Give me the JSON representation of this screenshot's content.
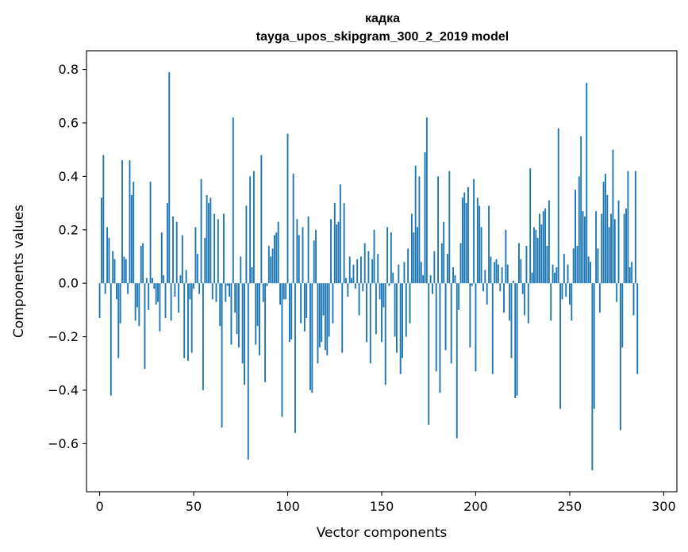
{
  "chart_data": {
    "type": "bar",
    "title": "кадка",
    "subtitle": "tayga_upos_skipgram_300_2_2019 model",
    "xlabel": "Vector components",
    "ylabel": "Components values",
    "xlim": [
      -7,
      307
    ],
    "ylim": [
      -0.78,
      0.87
    ],
    "xticks": [
      0,
      50,
      100,
      150,
      200,
      250,
      300
    ],
    "xtick_labels": [
      "0",
      "50",
      "100",
      "150",
      "200",
      "250",
      "300"
    ],
    "yticks": [
      -0.6,
      -0.4,
      -0.2,
      0.0,
      0.2,
      0.4,
      0.6,
      0.8
    ],
    "ytick_labels": [
      "−0.6",
      "−0.4",
      "−0.2",
      "0.0",
      "0.2",
      "0.4",
      "0.6",
      "0.8"
    ],
    "grid": false,
    "bar_color": "#1f77b4",
    "values": [
      -0.13,
      0.32,
      0.48,
      -0.04,
      0.21,
      0.17,
      -0.42,
      0.12,
      0.09,
      -0.06,
      -0.28,
      -0.15,
      0.46,
      0.1,
      0.09,
      -0.04,
      0.46,
      0.33,
      0.38,
      -0.14,
      -0.09,
      -0.16,
      0.14,
      0.15,
      -0.32,
      0.02,
      -0.1,
      0.38,
      0.02,
      -0.02,
      -0.08,
      -0.07,
      -0.18,
      0.19,
      0.03,
      -0.13,
      0.3,
      0.79,
      -0.14,
      0.25,
      -0.05,
      0.23,
      -0.11,
      0.03,
      0.18,
      -0.28,
      0.05,
      -0.29,
      -0.06,
      -0.26,
      -0.02,
      0.21,
      0.11,
      -0.04,
      0.39,
      -0.4,
      0.17,
      0.33,
      0.3,
      0.32,
      -0.06,
      0.26,
      -0.07,
      0.24,
      -0.16,
      -0.54,
      0.26,
      -0.07,
      -0.01,
      -0.05,
      -0.23,
      0.62,
      -0.11,
      -0.19,
      -0.24,
      0.1,
      -0.3,
      -0.38,
      0.29,
      -0.66,
      0.4,
      0.06,
      0.42,
      -0.23,
      -0.16,
      -0.27,
      0.48,
      -0.07,
      -0.37,
      -0.01,
      0.14,
      0.1,
      0.13,
      0.18,
      0.19,
      0.23,
      -0.08,
      -0.5,
      -0.06,
      -0.06,
      0.56,
      -0.22,
      -0.21,
      0.41,
      -0.56,
      0.24,
      0.18,
      -0.15,
      0.21,
      -0.18,
      -0.13,
      0.25,
      -0.4,
      -0.41,
      0.16,
      0.2,
      -0.3,
      -0.24,
      -0.22,
      -0.12,
      -0.25,
      -0.27,
      -0.2,
      0.24,
      -0.15,
      0.3,
      0.22,
      0.23,
      0.37,
      -0.26,
      0.3,
      0.02,
      -0.05,
      0.1,
      0.02,
      0.07,
      -0.02,
      0.09,
      -0.12,
      0.1,
      -0.03,
      0.15,
      -0.22,
      0.12,
      -0.3,
      0.09,
      0.2,
      -0.19,
      0.11,
      -0.06,
      -0.22,
      -0.09,
      -0.38,
      0.21,
      -0.01,
      0.19,
      0.04,
      -0.2,
      -0.26,
      0.07,
      -0.34,
      -0.28,
      0.08,
      -0.2,
      0.13,
      -0.15,
      0.26,
      0.19,
      0.44,
      0.21,
      0.4,
      0.08,
      0.03,
      0.49,
      0.62,
      -0.53,
      0.03,
      -0.04,
      0.12,
      -0.33,
      0.4,
      -0.41,
      0.15,
      0.23,
      -0.25,
      0.11,
      0.42,
      -0.3,
      0.06,
      0.03,
      -0.58,
      -0.1,
      0.15,
      0.32,
      0.34,
      0.3,
      0.36,
      -0.24,
      -0.01,
      0.39,
      -0.33,
      0.32,
      0.29,
      0.21,
      -0.03,
      0.05,
      -0.08,
      0.29,
      0.1,
      -0.34,
      0.08,
      0.09,
      0.07,
      -0.03,
      0.06,
      -0.11,
      0.2,
      0.07,
      -0.14,
      -0.28,
      0.01,
      -0.43,
      -0.42,
      0.15,
      0.09,
      -0.04,
      -0.12,
      0.14,
      -0.15,
      0.43,
      0.04,
      0.21,
      0.2,
      0.17,
      0.26,
      0.22,
      0.27,
      0.28,
      0.14,
      0.31,
      -0.14,
      0.07,
      0.04,
      0.06,
      0.58,
      -0.47,
      -0.06,
      0.11,
      -0.05,
      0.07,
      -0.08,
      -0.14,
      0.13,
      0.35,
      0.14,
      0.4,
      0.55,
      0.27,
      0.25,
      0.75,
      0.1,
      0.08,
      -0.7,
      -0.47,
      0.27,
      0.13,
      -0.11,
      0.26,
      0.38,
      0.41,
      0.33,
      0.21,
      0.26,
      0.5,
      0.24,
      -0.07,
      0.31,
      -0.55,
      -0.24,
      0.26,
      0.28,
      0.42,
      0.06,
      0.08,
      -0.12,
      0.42,
      -0.34
    ]
  }
}
